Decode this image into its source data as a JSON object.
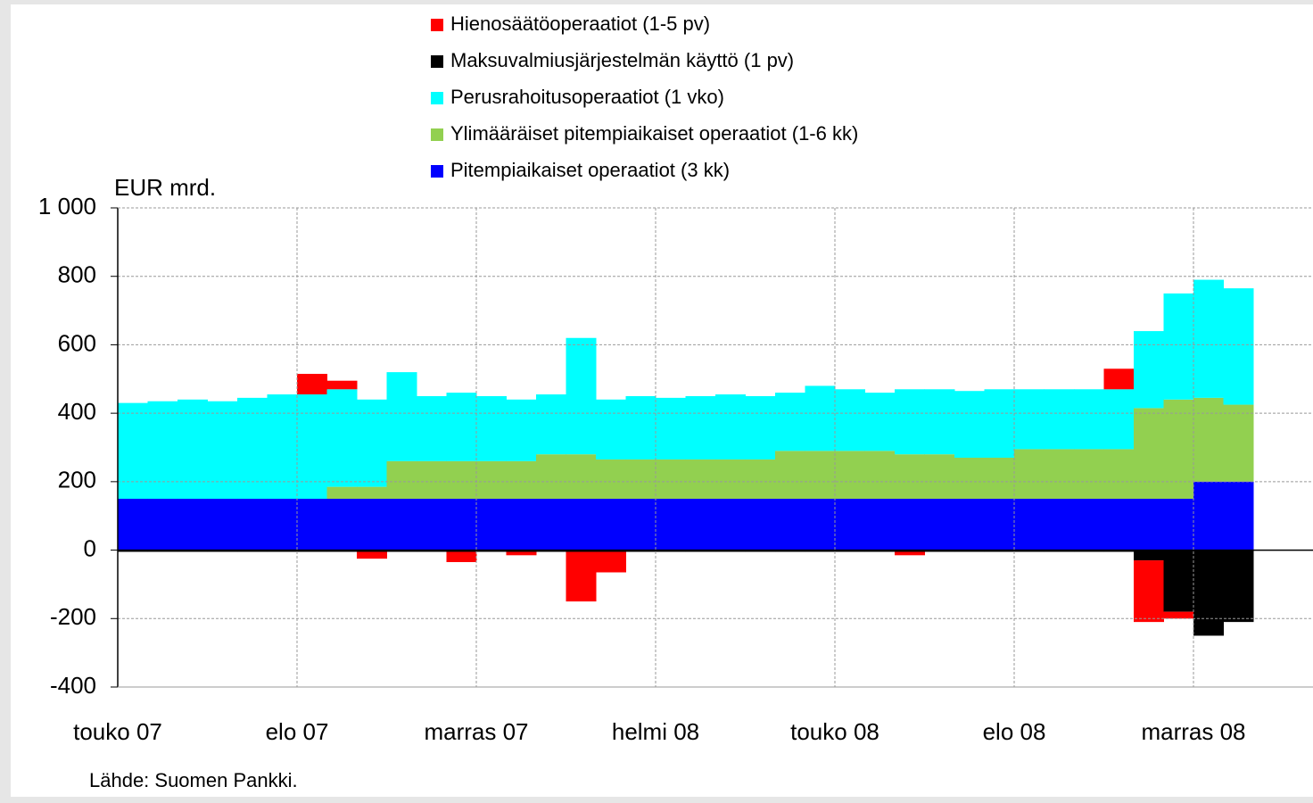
{
  "chart_data": {
    "type": "stacked_bar",
    "y_label": "EUR mrd.",
    "source": "Lähde: Suomen Pankki.",
    "categories": [
      "touko 07",
      null,
      null,
      null,
      null,
      null,
      "elo 07",
      null,
      null,
      null,
      null,
      null,
      "marras 07",
      null,
      null,
      null,
      null,
      null,
      "helmi 08",
      null,
      null,
      null,
      null,
      null,
      "touko 08",
      null,
      null,
      null,
      null,
      null,
      "elo 08",
      null,
      null,
      null,
      null,
      null,
      "marras 08",
      null,
      null,
      null
    ],
    "series": [
      {
        "name": "Hienosäätöoperaatiot (1-5 pv)",
        "color": "#ff0000",
        "values": [
          0,
          0,
          0,
          0,
          0,
          0,
          60,
          25,
          -20,
          0,
          0,
          -30,
          0,
          -10,
          0,
          -145,
          -60,
          0,
          0,
          0,
          0,
          0,
          0,
          0,
          0,
          0,
          -10,
          0,
          0,
          0,
          0,
          0,
          0,
          60,
          -180,
          -20,
          0,
          0,
          null,
          null
        ]
      },
      {
        "name": "Maksuvalmiusjärjestelmän käyttö (1 pv)",
        "color": "#000000",
        "values": [
          -5,
          -5,
          -5,
          -5,
          -5,
          -5,
          -5,
          -5,
          -5,
          -5,
          -5,
          -5,
          -5,
          -5,
          -5,
          -5,
          -5,
          -5,
          -5,
          -5,
          -5,
          -5,
          -5,
          -5,
          -5,
          -5,
          -5,
          -5,
          -5,
          -5,
          -5,
          -5,
          -5,
          -5,
          -30,
          -180,
          -250,
          -210,
          null,
          null
        ]
      },
      {
        "name": "Perusrahoitusoperaatiot (1 vko)",
        "color": "#00ffff",
        "values": [
          280,
          285,
          290,
          285,
          295,
          305,
          305,
          285,
          255,
          260,
          190,
          200,
          190,
          180,
          175,
          340,
          175,
          185,
          180,
          185,
          190,
          185,
          170,
          190,
          180,
          170,
          190,
          190,
          195,
          200,
          175,
          175,
          175,
          175,
          225,
          310,
          345,
          340,
          null,
          null
        ]
      },
      {
        "name": "Ylimääräiset pitempiaikaiset operaatiot (1-6 kk)",
        "color": "#92d050",
        "values": [
          0,
          0,
          0,
          0,
          0,
          0,
          0,
          35,
          35,
          110,
          110,
          110,
          110,
          110,
          130,
          130,
          115,
          115,
          115,
          115,
          115,
          115,
          140,
          140,
          140,
          140,
          130,
          130,
          120,
          120,
          145,
          145,
          145,
          145,
          265,
          290,
          245,
          225,
          null,
          null
        ]
      },
      {
        "name": "Pitempiaikaiset operaatiot (3 kk)",
        "color": "#0000ff",
        "values": [
          150,
          150,
          150,
          150,
          150,
          150,
          150,
          150,
          150,
          150,
          150,
          150,
          150,
          150,
          150,
          150,
          150,
          150,
          150,
          150,
          150,
          150,
          150,
          150,
          150,
          150,
          150,
          150,
          150,
          150,
          150,
          150,
          150,
          150,
          150,
          150,
          200,
          200,
          null,
          null
        ]
      }
    ],
    "ylim": [
      -400,
      1000
    ],
    "yticks": [
      -400,
      -200,
      0,
      200,
      400,
      600,
      800,
      {
        "value": 1000,
        "label": "1 000"
      }
    ],
    "grid": true,
    "legend": "top"
  }
}
